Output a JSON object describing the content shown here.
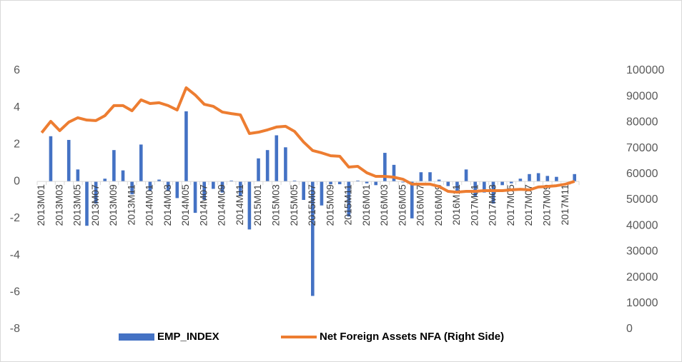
{
  "chart_data": {
    "type": "bar-line",
    "categories": [
      "2013M01",
      null,
      "2013M03",
      null,
      "2013M05",
      null,
      "2013M07",
      null,
      "2013M09",
      null,
      "2013M11",
      null,
      "2014M01",
      null,
      "2014M03",
      null,
      "2014M05",
      null,
      "2014M07",
      null,
      "2014M09",
      null,
      "2014M11",
      null,
      "2015M01",
      null,
      "2015M03",
      null,
      "2015M05",
      null,
      "2015M07",
      null,
      "2015M09",
      null,
      "2015M11",
      null,
      "2016M01",
      null,
      "2016M03",
      null,
      "2016M05",
      null,
      "2016M07",
      null,
      "2016M09",
      null,
      "2016M11",
      null,
      "2017M01",
      null,
      "2017M03",
      null,
      "2017M05",
      null,
      "2017M07",
      null,
      "2017M09",
      null,
      "2017M11",
      null
    ],
    "series": [
      {
        "name": "EMP_INDEX",
        "color": "#4472c4",
        "type": "bar",
        "axis": "y",
        "values": [
          0,
          2.45,
          0,
          2.25,
          0.65,
          -2.4,
          -1.2,
          0.15,
          1.7,
          0.6,
          -0.7,
          2.0,
          -0.5,
          0.1,
          -0.5,
          -0.9,
          3.8,
          -1.7,
          -1.0,
          -0.4,
          -0.6,
          0.05,
          -0.8,
          -2.6,
          1.25,
          1.7,
          2.5,
          1.85,
          0.05,
          -1.0,
          -6.2,
          -1.3,
          -0.15,
          -0.15,
          -1.9,
          0.05,
          -0.1,
          -0.2,
          1.55,
          0.9,
          -0.05,
          -2.0,
          0.5,
          0.5,
          0.1,
          -0.25,
          -0.5,
          0.65,
          -0.8,
          -0.6,
          -1.2,
          -0.2,
          -0.1,
          0.15,
          0.4,
          0.45,
          0.3,
          0.25,
          0.0,
          0.4
        ]
      },
      {
        "name": "Net Foreign Assets NFA (Right Side)",
        "color": "#ed7d31",
        "type": "line",
        "axis": "y2",
        "values": [
          76000,
          80400,
          76800,
          80100,
          81800,
          80900,
          80700,
          82600,
          86500,
          86500,
          84500,
          88700,
          87300,
          87600,
          86500,
          84800,
          93400,
          90600,
          87000,
          86200,
          84000,
          83400,
          82900,
          75700,
          76200,
          77100,
          78200,
          78500,
          76500,
          72400,
          69100,
          68200,
          67100,
          66900,
          62700,
          63000,
          60500,
          59100,
          59100,
          58800,
          58000,
          56100,
          56100,
          56100,
          55200,
          53300,
          53000,
          53300,
          53300,
          53600,
          53600,
          53600,
          53900,
          54100,
          53900,
          55000,
          55200,
          55500,
          56100,
          57200
        ]
      }
    ],
    "ylim": [
      -8,
      6
    ],
    "yticks": [
      -8,
      -6,
      -4,
      -2,
      0,
      2,
      4,
      6
    ],
    "y2lim": [
      0,
      100000
    ],
    "y2ticks": [
      0,
      10000,
      20000,
      30000,
      40000,
      50000,
      60000,
      70000,
      80000,
      90000,
      100000
    ],
    "legend": "bottom"
  }
}
